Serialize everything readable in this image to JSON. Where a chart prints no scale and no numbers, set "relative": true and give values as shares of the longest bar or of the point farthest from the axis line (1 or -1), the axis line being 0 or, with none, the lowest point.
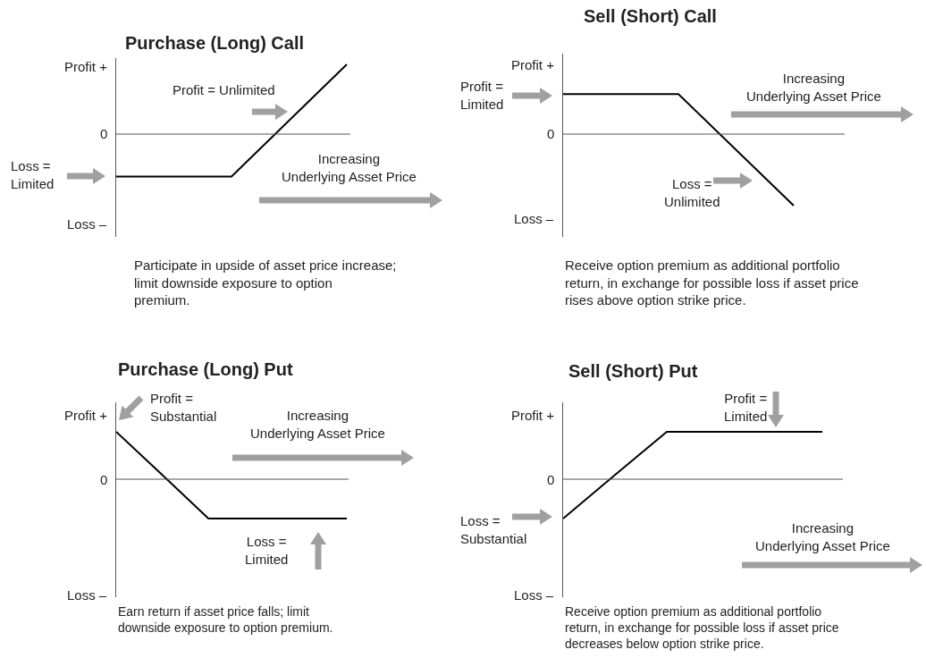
{
  "chart_data": [
    {
      "type": "line",
      "title": "Purchase (Long) Call",
      "categories": [
        null,
        null,
        null
      ],
      "values": [
        -0.61,
        -0.61,
        1
      ],
      "color": "#000000",
      "relative": true,
      "ref_lines": [
        {
          "axis": "y",
          "value": 0,
          "color": "#555555"
        }
      ],
      "annotations": [
        "Profit +",
        "0",
        "Loss –",
        "Profit = Unlimited",
        "Loss =\nLimited",
        "Increasing\nUnderlying Asset Price",
        "Participate in upside of asset price increase;\nlimit downside exposure to option\npremium."
      ]
    },
    {
      "type": "line",
      "title": "Sell (Short) Call",
      "categories": [
        null,
        null,
        null
      ],
      "values": [
        0.56,
        0.56,
        -1
      ],
      "color": "#000000",
      "relative": true,
      "ref_lines": [
        {
          "axis": "y",
          "value": 0,
          "color": "#555555"
        }
      ],
      "annotations": [
        "Profit +",
        "0",
        "Loss –",
        "Profit =\nLimited",
        "Increasing\nUnderlying Asset Price",
        "Loss =\nUnlimited",
        "Receive option premium as additional portfolio\nreturn, in exchange for possible loss if asset price\nrises above option strike price."
      ]
    },
    {
      "type": "line",
      "title": "Purchase (Long) Put",
      "categories": [
        null,
        null,
        null,
        null,
        null,
        null
      ],
      "values": [
        1,
        0.09,
        -0.83,
        -0.83,
        -0.83,
        -0.83
      ],
      "color": "#000000",
      "relative": true,
      "ref_lines": [
        {
          "axis": "y",
          "value": 0,
          "color": "#555555"
        }
      ],
      "annotations": [
        "Profit +",
        "0",
        "Loss –",
        "Profit =\nSubstantial",
        "Increasing\nUnderlying Asset Price",
        "Loss =\nLimited",
        "Earn return if asset price falls; limit\ndownside exposure to option premium."
      ]
    },
    {
      "type": "line",
      "title": "Sell (Short) Put",
      "categories": [
        null,
        null,
        null,
        null,
        null,
        null
      ],
      "values": [
        -0.83,
        0.09,
        1,
        1,
        1,
        1
      ],
      "color": "#000000",
      "relative": true,
      "ref_lines": [
        {
          "axis": "y",
          "value": 0,
          "color": "#555555"
        }
      ],
      "annotations": [
        "Profit +",
        "0",
        "Loss –",
        "Profit =\nLimited",
        "Loss =\nSubstantial",
        "Increasing\nUnderlying Asset Price",
        "Receive option premium as additional portfolio\nreturn, in exchange for possible loss if asset price\ndecreases below option strike price."
      ]
    }
  ]
}
